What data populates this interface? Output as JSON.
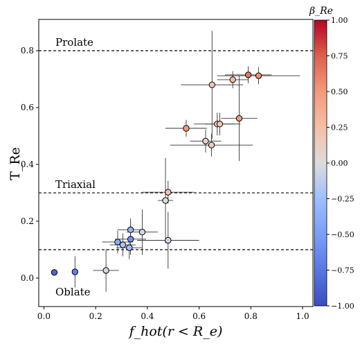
{
  "chart_data": {
    "type": "scatter",
    "xlabel": "f_hot(r < R_e)",
    "ylabel": "T_Re",
    "xlim": [
      -0.02,
      1.04
    ],
    "ylim": [
      -0.1,
      0.91
    ],
    "xticks": [
      0.0,
      0.2,
      0.4,
      0.6,
      0.8,
      1.0
    ],
    "xtick_labels": [
      "0.0",
      "0.2",
      "0.4",
      "0.6",
      "0.8",
      "1.0"
    ],
    "yticks": [
      0.0,
      0.2,
      0.4,
      0.6,
      0.8
    ],
    "ytick_labels": [
      "0.0",
      "0.2",
      "0.4",
      "0.6",
      "0.8"
    ],
    "grid": false,
    "reference_lines": [
      {
        "y": 0.8,
        "label": "Prolate",
        "style": "dashed"
      },
      {
        "y": 0.3,
        "label": "Triaxial",
        "style": "dashed"
      },
      {
        "y": 0.1,
        "label": "Oblate",
        "style": "dashed"
      }
    ],
    "colorbar": {
      "label": "β_Re",
      "range": [
        -1.0,
        1.0
      ],
      "ticks": [
        1.0,
        0.75,
        0.5,
        0.25,
        0.0,
        -0.25,
        -0.5,
        -0.75,
        -1.0
      ],
      "tick_labels": [
        "1.00",
        "0.75",
        "0.50",
        "0.25",
        "0.00",
        "−0.25",
        "−0.50",
        "−0.75",
        "−1.00"
      ],
      "colormap": "coolwarm"
    },
    "points": [
      {
        "x": 0.04,
        "y": 0.02,
        "c": -0.85,
        "xerr": 0.0,
        "yerr": 0.0
      },
      {
        "x": 0.12,
        "y": 0.022,
        "c": -0.7,
        "xerr": 0.0,
        "yerr": 0.055
      },
      {
        "x": 0.24,
        "y": 0.027,
        "c": -0.05,
        "xerr": 0.05,
        "yerr": 0.075
      },
      {
        "x": 0.285,
        "y": 0.127,
        "c": -0.4,
        "xerr": 0.06,
        "yerr": 0.04
      },
      {
        "x": 0.305,
        "y": 0.117,
        "c": -0.2,
        "xerr": 0.05,
        "yerr": 0.04
      },
      {
        "x": 0.33,
        "y": 0.107,
        "c": -0.25,
        "xerr": 0.05,
        "yerr": 0.04
      },
      {
        "x": 0.335,
        "y": 0.137,
        "c": -0.6,
        "xerr": 0.06,
        "yerr": 0.055
      },
      {
        "x": 0.335,
        "y": 0.17,
        "c": -0.35,
        "xerr": 0.05,
        "yerr": 0.04
      },
      {
        "x": 0.38,
        "y": 0.162,
        "c": -0.05,
        "xerr": 0.06,
        "yerr": 0.08
      },
      {
        "x": 0.47,
        "y": 0.273,
        "c": 0.0,
        "xerr": 0.03,
        "yerr": 0.15
      },
      {
        "x": 0.48,
        "y": 0.302,
        "c": 0.2,
        "xerr": 0.1,
        "yerr": 0.04
      },
      {
        "x": 0.48,
        "y": 0.133,
        "c": -0.05,
        "xerr": 0.12,
        "yerr": 0.1
      },
      {
        "x": 0.55,
        "y": 0.527,
        "c": 0.5,
        "xerr": 0.08,
        "yerr": 0.03
      },
      {
        "x": 0.625,
        "y": 0.482,
        "c": 0.1,
        "xerr": 0.06,
        "yerr": 0.04
      },
      {
        "x": 0.648,
        "y": 0.468,
        "c": 0.15,
        "xerr": 0.16,
        "yerr": 0.04
      },
      {
        "x": 0.65,
        "y": 0.68,
        "c": 0.2,
        "xerr": 0.12,
        "yerr": 0.19
      },
      {
        "x": 0.67,
        "y": 0.542,
        "c": 0.15,
        "xerr": 0.09,
        "yerr": 0.04
      },
      {
        "x": 0.68,
        "y": 0.542,
        "c": 0.2,
        "xerr": 0.06,
        "yerr": 0.04
      },
      {
        "x": 0.73,
        "y": 0.698,
        "c": 0.3,
        "xerr": 0.06,
        "yerr": 0.03
      },
      {
        "x": 0.755,
        "y": 0.562,
        "c": 0.5,
        "xerr": 0.07,
        "yerr": 0.15
      },
      {
        "x": 0.79,
        "y": 0.715,
        "c": 0.65,
        "xerr": 0.09,
        "yerr": 0.03
      },
      {
        "x": 0.83,
        "y": 0.712,
        "c": 0.55,
        "xerr": 0.16,
        "yerr": 0.03
      }
    ]
  }
}
